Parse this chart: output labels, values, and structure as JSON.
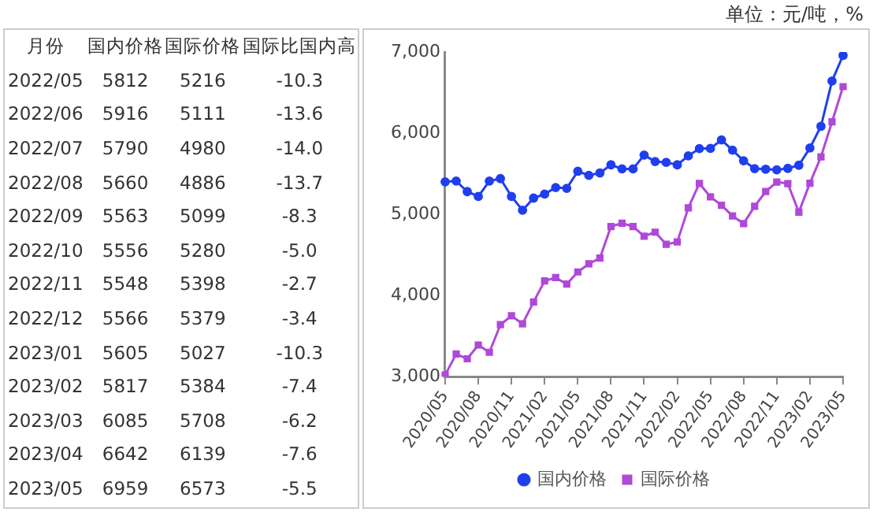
{
  "chart_data": [
    {
      "type": "other",
      "xlabel": "月份",
      "categories": [
        "2022/05",
        "2022/06",
        "2022/07",
        "2022/08",
        "2022/09",
        "2022/10",
        "2022/11",
        "2022/12",
        "2023/01",
        "2023/02",
        "2023/03",
        "2023/04",
        "2023/05"
      ],
      "data_labels": true,
      "series": [
        {
          "name": "国内价格",
          "values": [
            5812,
            5916,
            5790,
            5660,
            5563,
            5556,
            5548,
            5566,
            5605,
            5817,
            6085,
            6642,
            6959
          ]
        },
        {
          "name": "国际价格",
          "values": [
            5216,
            5111,
            4980,
            4886,
            5099,
            5280,
            5398,
            5379,
            5027,
            5384,
            5708,
            6139,
            6573
          ]
        },
        {
          "name": "国际比国内高",
          "values": [
            -10.3,
            -13.6,
            -14.0,
            -13.7,
            -8.3,
            -5.0,
            -2.7,
            -3.4,
            -10.3,
            -7.4,
            -6.2,
            -7.6,
            -5.5
          ],
          "value_labels": [
            "-10.3",
            "-13.6",
            "-14.0",
            "-13.7",
            "-8.3",
            "-5.0",
            "-2.7",
            "-3.4",
            "-10.3",
            "-7.4",
            "-6.2",
            "-7.6",
            "-5.5"
          ]
        }
      ]
    },
    {
      "type": "line",
      "annotations": [
        "单位：元/吨，%"
      ],
      "categories": [
        "2020/05",
        null,
        null,
        "2020/08",
        null,
        null,
        "2020/11",
        null,
        null,
        "2021/02",
        null,
        null,
        "2021/05",
        null,
        null,
        "2021/08",
        null,
        null,
        "2021/11",
        null,
        null,
        "2022/02",
        null,
        null,
        "2022/05",
        null,
        null,
        "2022/08",
        null,
        null,
        "2022/11",
        null,
        null,
        "2023/02",
        null,
        null,
        "2023/05"
      ],
      "ylim": [
        3000,
        7000
      ],
      "yticks": [
        {
          "value": 3000,
          "label": "3,000"
        },
        {
          "value": 4000,
          "label": "4,000"
        },
        {
          "value": 5000,
          "label": "5,000"
        },
        {
          "value": 6000,
          "label": "6,000"
        },
        {
          "value": 7000,
          "label": "7,000"
        }
      ],
      "grid": false,
      "legend": "bottom",
      "series": [
        {
          "name": "国内价格",
          "color": "#1f3fef",
          "marker": "circle",
          "values": [
            5400,
            5410,
            5280,
            5220,
            5410,
            5440,
            5220,
            5050,
            5200,
            5250,
            5330,
            5320,
            5530,
            5480,
            5510,
            5610,
            5560,
            5560,
            5730,
            5650,
            5640,
            5610,
            5720,
            5810,
            5812,
            5916,
            5790,
            5660,
            5563,
            5556,
            5548,
            5566,
            5605,
            5817,
            6085,
            6642,
            6959
          ]
        },
        {
          "name": "国际价格",
          "color": "#b048d8",
          "marker": "square",
          "values": [
            3020,
            3280,
            3220,
            3390,
            3300,
            3640,
            3750,
            3650,
            3920,
            4180,
            4220,
            4140,
            4290,
            4390,
            4460,
            4850,
            4890,
            4850,
            4730,
            4780,
            4630,
            4660,
            5080,
            5380,
            5216,
            5111,
            4980,
            4886,
            5099,
            5280,
            5398,
            5379,
            5027,
            5384,
            5708,
            6139,
            6573
          ]
        }
      ]
    }
  ]
}
